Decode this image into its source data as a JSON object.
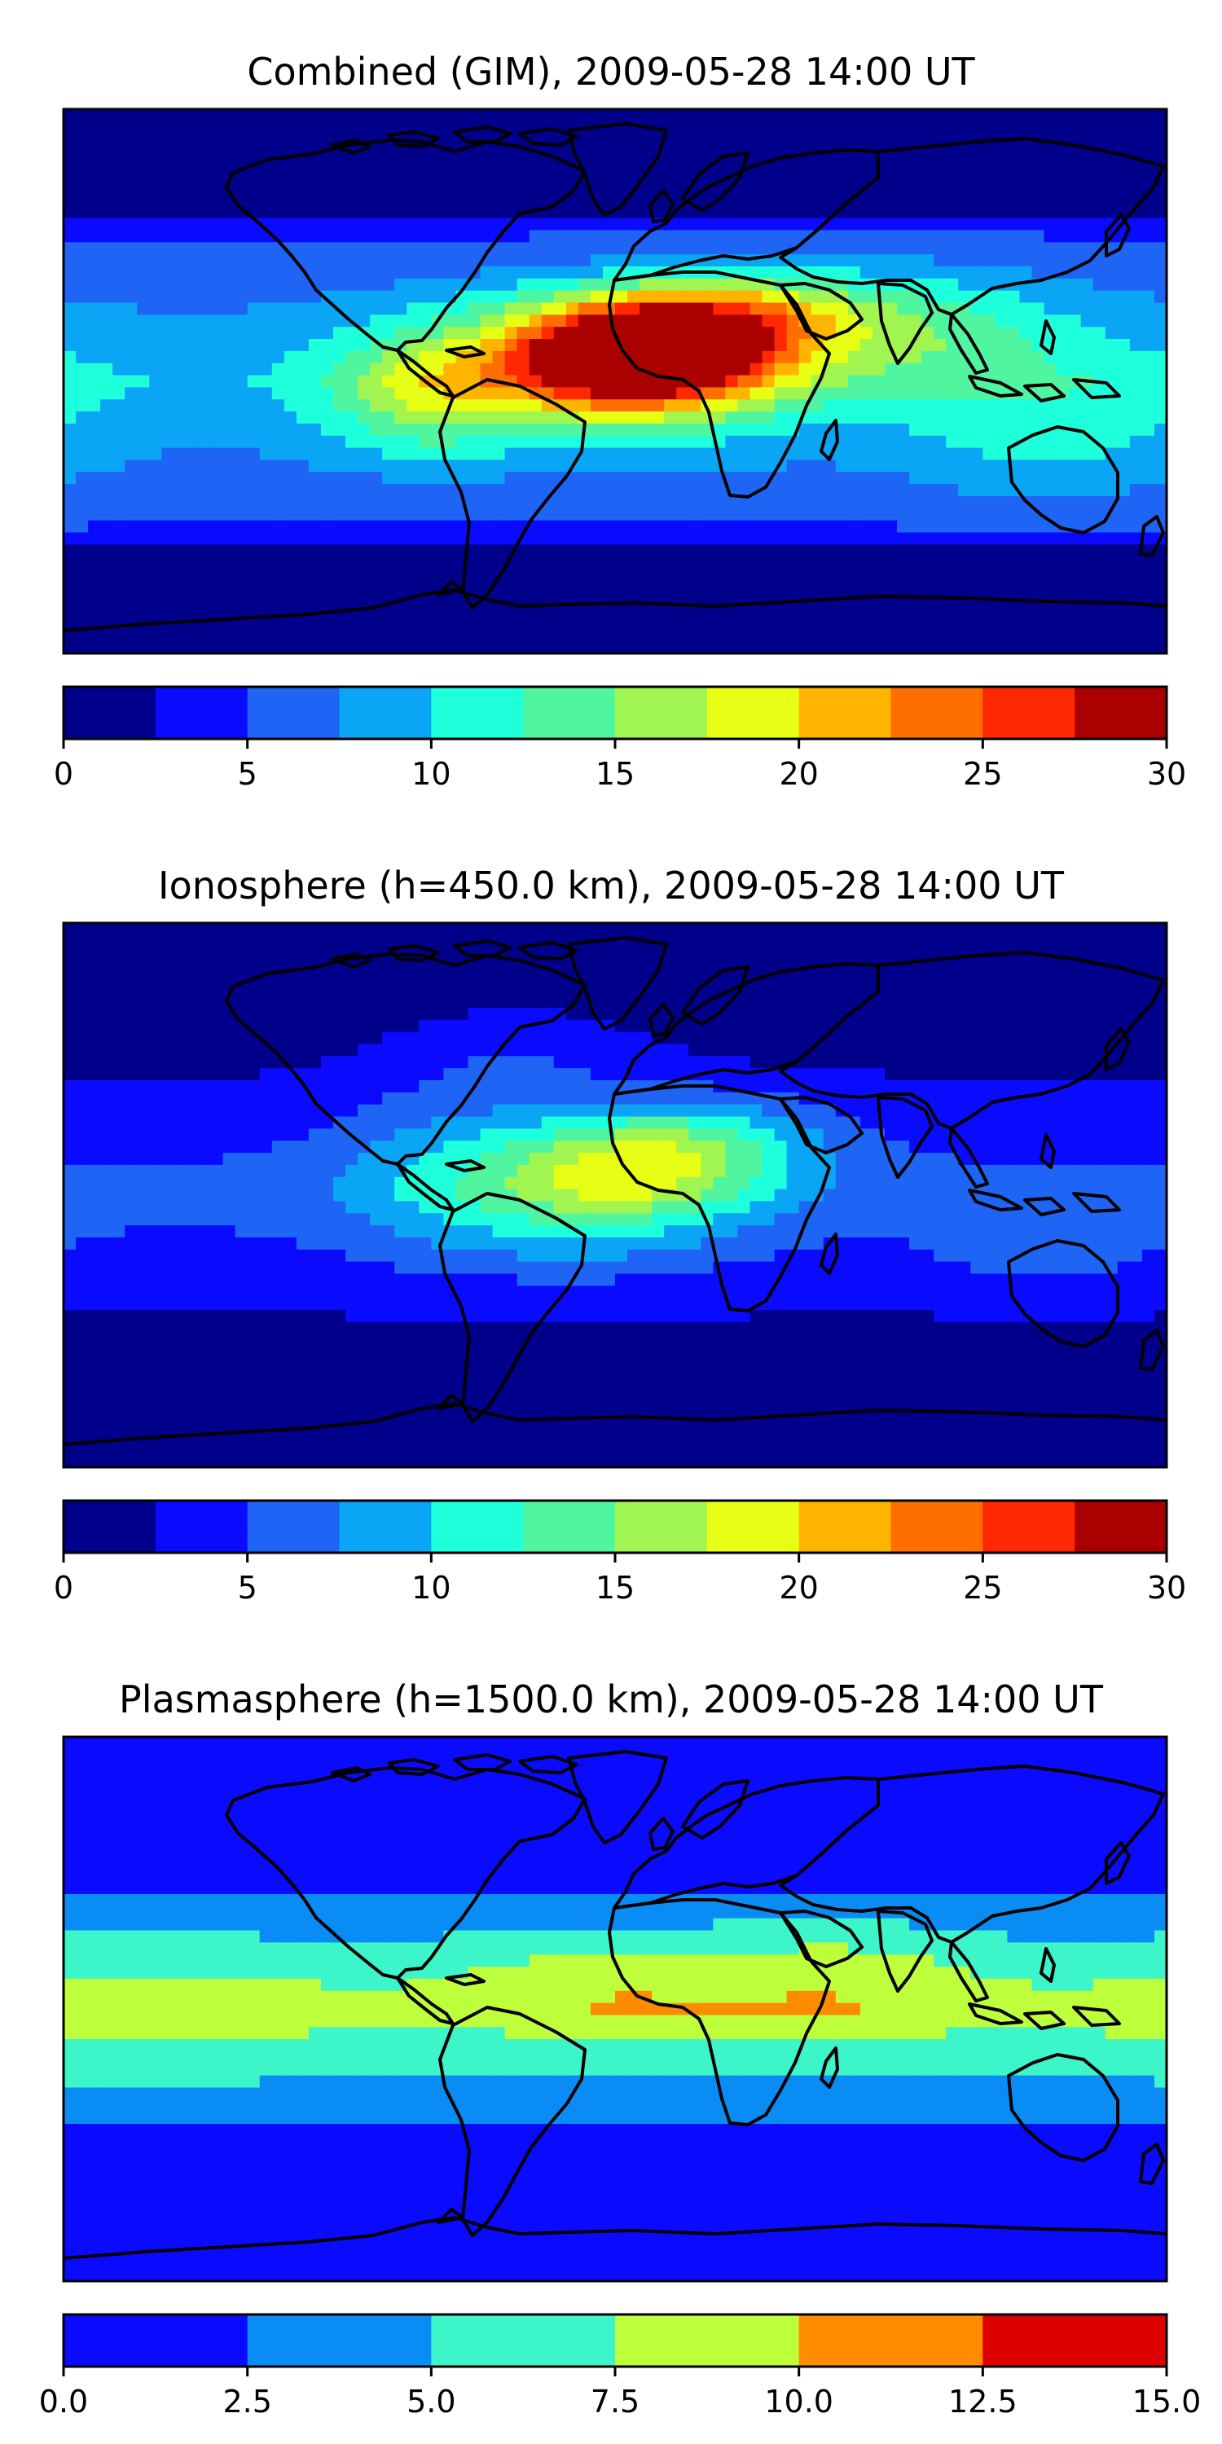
{
  "chart_data": [
    {
      "type": "heatmap",
      "title": "Combined (GIM), 2009-05-28 14:00 UT",
      "colorbar": {
        "ticks": [
          "0",
          "5",
          "10",
          "15",
          "20",
          "25",
          "30"
        ],
        "range": [
          0,
          30
        ],
        "levels": [
          0,
          2.5,
          5,
          7.5,
          10,
          12.5,
          15,
          17.5,
          20,
          22.5,
          25,
          27.5,
          30
        ],
        "colors": [
          "#00008b",
          "#0a0aff",
          "#1e64f5",
          "#0aa5f5",
          "#1effdc",
          "#50f5a0",
          "#a0f550",
          "#e6ff14",
          "#ffb400",
          "#ff6e00",
          "#ff2800",
          "#aa0000"
        ]
      },
      "field_features": [
        {
          "lon": 10,
          "lat": 10,
          "value": 26,
          "slon": 28,
          "slat": 12
        },
        {
          "lon": -10,
          "lat": 5,
          "value": 8,
          "slon": 40,
          "slat": 16
        },
        {
          "lon": 45,
          "lat": 22,
          "value": 8,
          "slon": 25,
          "slat": 10
        },
        {
          "lon": 95,
          "lat": 18,
          "value": 6,
          "slon": 35,
          "slat": 14
        },
        {
          "lon": -62,
          "lat": -5,
          "value": 6,
          "slon": 20,
          "slat": 14
        },
        {
          "lon": 140,
          "lat": -20,
          "value": 3,
          "slon": 30,
          "slat": 18
        },
        {
          "lon": -135,
          "lat": 0,
          "value": -1.5,
          "slon": 15,
          "slat": 15
        }
      ]
    },
    {
      "type": "heatmap",
      "title": "Ionosphere  (h=450.0 km), 2009-05-28 14:00 UT",
      "colorbar": {
        "ticks": [
          "0",
          "5",
          "10",
          "15",
          "20",
          "25",
          "30"
        ],
        "range": [
          0,
          30
        ],
        "levels": [
          0,
          2.5,
          5,
          7.5,
          10,
          12.5,
          15,
          17.5,
          20,
          22.5,
          25,
          27.5,
          30
        ],
        "colors": [
          "#00008b",
          "#0a0aff",
          "#1e64f5",
          "#0aa5f5",
          "#1effdc",
          "#50f5a0",
          "#a0f550",
          "#e6ff14",
          "#ffb400",
          "#ff6e00",
          "#ff2800",
          "#aa0000"
        ]
      },
      "field_features": [
        {
          "lon": 10,
          "lat": 12,
          "value": 9,
          "slon": 30,
          "slat": 12
        },
        {
          "lon": -10,
          "lat": 0,
          "value": 7,
          "slon": 35,
          "slat": 16
        },
        {
          "lon": 40,
          "lat": 20,
          "value": 3,
          "slon": 25,
          "slat": 10
        },
        {
          "lon": -60,
          "lat": 10,
          "value": 3,
          "slon": 25,
          "slat": 20
        },
        {
          "lon": -30,
          "lat": 50,
          "value": 3,
          "slon": 30,
          "slat": 12
        },
        {
          "lon": 140,
          "lat": -20,
          "value": 2,
          "slon": 25,
          "slat": 10
        }
      ]
    },
    {
      "type": "heatmap",
      "title": "Plasmasphere (h=1500.0 km), 2009-05-28 14:00 UT",
      "colorbar": {
        "ticks": [
          "0.0",
          "2.5",
          "5.0",
          "7.5",
          "10.0",
          "12.5",
          "15.0"
        ],
        "range": [
          0,
          15
        ],
        "levels": [
          0,
          2.5,
          5,
          7.5,
          10,
          12.5,
          15
        ],
        "colors": [
          "#0a0aff",
          "#0a8cf5",
          "#3cf5c8",
          "#beff3c",
          "#ff8c00",
          "#dc0000"
        ]
      },
      "field_features": [
        {
          "lon": 0,
          "lat": 10,
          "value": 2.6,
          "slon": 35,
          "slat": 12
        },
        {
          "lon": 75,
          "lat": 12,
          "value": 2.6,
          "slon": 30,
          "slat": 13
        },
        {
          "lon": -150,
          "lat": 0,
          "value": 1.2,
          "slon": 40,
          "slat": 20
        }
      ]
    }
  ],
  "map": {
    "border_color": "#000000"
  }
}
